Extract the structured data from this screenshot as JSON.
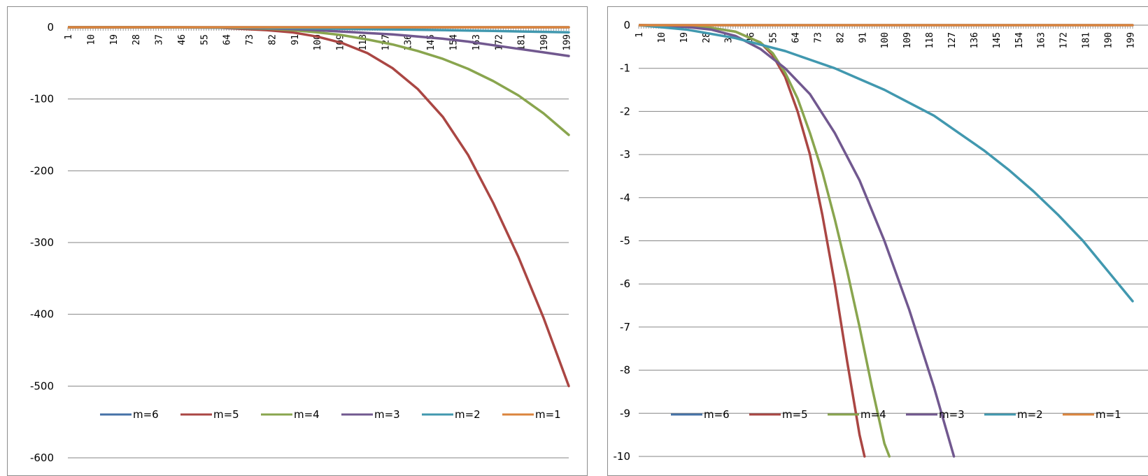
{
  "chart_data": [
    {
      "type": "line",
      "title": "",
      "xlabel": "",
      "ylabel": "",
      "ylim": [
        -600,
        0
      ],
      "yticks": [
        0,
        -100,
        -200,
        -300,
        -400,
        -500,
        -600
      ],
      "xtick_labels": [
        "1",
        "10",
        "19",
        "28",
        "37",
        "46",
        "55",
        "64",
        "73",
        "82",
        "91",
        "100",
        "109",
        "118",
        "127",
        "136",
        "145",
        "154",
        "163",
        "172",
        "181",
        "190",
        "199"
      ],
      "x": [
        1,
        20,
        40,
        60,
        80,
        90,
        100,
        110,
        120,
        130,
        140,
        150,
        160,
        170,
        180,
        190,
        200
      ],
      "grid": true,
      "legend_position": "bottom",
      "legend": [
        "m=6",
        "m=5",
        "m=4",
        "m=3",
        "m=2",
        "m=1"
      ],
      "series": [
        {
          "name": "m=6",
          "color": "#4572a7",
          "values": [
            0,
            0,
            0,
            0,
            0,
            0,
            0,
            0,
            0,
            0,
            0,
            0,
            0,
            0,
            0,
            0,
            0
          ]
        },
        {
          "name": "m=5",
          "color": "#aa4643",
          "values": [
            0,
            0,
            -0.1,
            -0.5,
            -4,
            -7,
            -13,
            -22,
            -36,
            -57,
            -86,
            -125,
            -178,
            -245,
            -320,
            -405,
            -500
          ]
        },
        {
          "name": "m=4",
          "color": "#89a54e",
          "values": [
            0,
            0,
            -0.1,
            -0.4,
            -2,
            -4,
            -7,
            -11,
            -17,
            -24,
            -33,
            -44,
            -58,
            -75,
            -95,
            -120,
            -150
          ]
        },
        {
          "name": "m=3",
          "color": "#71588f",
          "values": [
            0,
            0,
            -0.1,
            -0.4,
            -1.5,
            -2.5,
            -4,
            -6,
            -8,
            -10,
            -13,
            -16,
            -20,
            -25,
            -30,
            -35,
            -40
          ]
        },
        {
          "name": "m=2",
          "color": "#4198af",
          "values": [
            0,
            0,
            -0.2,
            -0.5,
            -1,
            -1.4,
            -1.7,
            -2.2,
            -2.6,
            -3,
            -3.5,
            -4,
            -4.6,
            -5.2,
            -5.8,
            -6.4,
            -7
          ]
        },
        {
          "name": "m=1",
          "color": "#db843d",
          "values": [
            0,
            0,
            0,
            0,
            0,
            0,
            0,
            0,
            0,
            0,
            0,
            0,
            0,
            0,
            0,
            0,
            0
          ]
        }
      ]
    },
    {
      "type": "line",
      "title": "",
      "xlabel": "",
      "ylabel": "",
      "ylim": [
        -10,
        0
      ],
      "yticks": [
        0,
        -1,
        -2,
        -3,
        -4,
        -5,
        -6,
        -7,
        -8,
        -9,
        -10
      ],
      "xtick_labels": [
        "1",
        "10",
        "19",
        "28",
        "37",
        "46",
        "55",
        "64",
        "73",
        "82",
        "91",
        "100",
        "109",
        "118",
        "127",
        "136",
        "145",
        "154",
        "163",
        "172",
        "181",
        "190",
        "199"
      ],
      "grid": true,
      "legend_position": "bottom",
      "legend": [
        "m=6",
        "m=5",
        "m=4",
        "m=3",
        "m=2",
        "m=1"
      ],
      "series": [
        {
          "name": "m=6",
          "color": "#4572a7",
          "x": [
            1,
            200
          ],
          "values": [
            0,
            0
          ]
        },
        {
          "name": "m=5",
          "color": "#aa4643",
          "x": [
            1,
            20,
            30,
            40,
            50,
            55,
            60,
            65,
            70,
            75,
            80,
            85,
            90,
            92
          ],
          "values": [
            0,
            -0.02,
            -0.06,
            -0.15,
            -0.4,
            -0.7,
            -1.2,
            -2,
            -3,
            -4.4,
            -6,
            -7.8,
            -9.5,
            -10
          ]
        },
        {
          "name": "m=4",
          "color": "#89a54e",
          "x": [
            1,
            20,
            30,
            40,
            50,
            55,
            60,
            65,
            70,
            75,
            80,
            85,
            90,
            95,
            100,
            102
          ],
          "values": [
            0,
            -0.02,
            -0.06,
            -0.15,
            -0.4,
            -0.65,
            -1.1,
            -1.7,
            -2.5,
            -3.4,
            -4.5,
            -5.7,
            -7,
            -8.4,
            -9.7,
            -10
          ]
        },
        {
          "name": "m=3",
          "color": "#71588f",
          "x": [
            1,
            20,
            30,
            40,
            50,
            60,
            70,
            80,
            90,
            100,
            110,
            120,
            128
          ],
          "values": [
            0,
            -0.04,
            -0.1,
            -0.25,
            -0.55,
            -1,
            -1.6,
            -2.5,
            -3.6,
            -5,
            -6.6,
            -8.4,
            -10
          ]
        },
        {
          "name": "m=2",
          "color": "#4198af",
          "x": [
            1,
            20,
            30,
            40,
            50,
            60,
            70,
            80,
            90,
            100,
            110,
            120,
            130,
            140,
            150,
            160,
            170,
            180,
            190,
            200
          ],
          "values": [
            0,
            -0.1,
            -0.2,
            -0.3,
            -0.45,
            -0.6,
            -0.8,
            -1,
            -1.25,
            -1.5,
            -1.8,
            -2.1,
            -2.5,
            -2.9,
            -3.35,
            -3.85,
            -4.4,
            -5,
            -5.7,
            -6.4
          ]
        },
        {
          "name": "m=1",
          "color": "#db843d",
          "x": [
            1,
            200
          ],
          "values": [
            0,
            0
          ]
        }
      ]
    }
  ]
}
